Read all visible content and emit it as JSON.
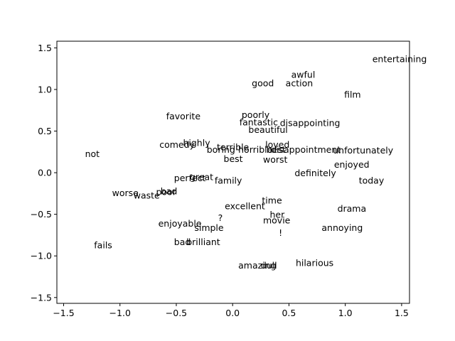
{
  "chart_data": {
    "type": "scatter",
    "title": "",
    "xlabel": "",
    "ylabel": "",
    "xlim": [
      -1.56,
      1.57
    ],
    "ylim": [
      -1.57,
      1.58
    ],
    "xticks": [
      -1.5,
      -1.0,
      -0.5,
      0.0,
      0.5,
      1.0,
      1.5
    ],
    "yticks": [
      -1.5,
      -1.0,
      -0.5,
      0.0,
      0.5,
      1.0,
      1.5
    ],
    "xtick_labels": [
      "−1.5",
      "−1.0",
      "−0.5",
      "0.0",
      "0.5",
      "1.0",
      "1.5"
    ],
    "ytick_labels": [
      "−1.5",
      "−1.0",
      "−0.5",
      "0.0",
      "0.5",
      "1.0",
      "1.5"
    ],
    "grid": false,
    "points": [
      {
        "label": "entertaining",
        "x": 1.24,
        "y": 1.33
      },
      {
        "label": "awful",
        "x": 0.52,
        "y": 1.14
      },
      {
        "label": "good",
        "x": 0.17,
        "y": 1.04
      },
      {
        "label": "action",
        "x": 0.47,
        "y": 1.04
      },
      {
        "label": "film",
        "x": 0.99,
        "y": 0.9
      },
      {
        "label": "favorite",
        "x": -0.59,
        "y": 0.64
      },
      {
        "label": "poorly",
        "x": 0.08,
        "y": 0.66
      },
      {
        "label": "fantastic",
        "x": 0.06,
        "y": 0.57
      },
      {
        "label": "disappointing",
        "x": 0.42,
        "y": 0.56
      },
      {
        "label": "beautiful",
        "x": 0.14,
        "y": 0.48
      },
      {
        "label": "comedy",
        "x": -0.65,
        "y": 0.3
      },
      {
        "label": "highly",
        "x": -0.44,
        "y": 0.32
      },
      {
        "label": "terrible",
        "x": -0.14,
        "y": 0.27
      },
      {
        "label": "boring",
        "x": -0.23,
        "y": 0.24
      },
      {
        "label": "horrible",
        "x": 0.05,
        "y": 0.24
      },
      {
        "label": "loved",
        "x": 0.29,
        "y": 0.3
      },
      {
        "label": "best",
        "x": 0.3,
        "y": 0.24
      },
      {
        "label": "disappointment",
        "x": 0.34,
        "y": 0.24
      },
      {
        "label": "unfortunately",
        "x": 0.89,
        "y": 0.23
      },
      {
        "label": "not",
        "x": -1.31,
        "y": 0.19
      },
      {
        "label": "best",
        "x": -0.08,
        "y": 0.13
      },
      {
        "label": "worst",
        "x": 0.27,
        "y": 0.12
      },
      {
        "label": "enjoyed",
        "x": 0.9,
        "y": 0.06
      },
      {
        "label": "definitely",
        "x": 0.55,
        "y": -0.04
      },
      {
        "label": "great",
        "x": -0.38,
        "y": -0.09
      },
      {
        "label": "perfect",
        "x": -0.52,
        "y": -0.1
      },
      {
        "label": "family",
        "x": -0.16,
        "y": -0.13
      },
      {
        "label": "today",
        "x": 1.12,
        "y": -0.13
      },
      {
        "label": "worse",
        "x": -1.07,
        "y": -0.28
      },
      {
        "label": "waste",
        "x": -0.88,
        "y": -0.31
      },
      {
        "label": "poor",
        "x": -0.68,
        "y": -0.27
      },
      {
        "label": "bad",
        "x": -0.64,
        "y": -0.26
      },
      {
        "label": "time",
        "x": 0.26,
        "y": -0.37
      },
      {
        "label": "excellent",
        "x": -0.07,
        "y": -0.44
      },
      {
        "label": "drama",
        "x": 0.93,
        "y": -0.47
      },
      {
        "label": "her",
        "x": 0.33,
        "y": -0.54
      },
      {
        "label": "?",
        "x": -0.13,
        "y": -0.58
      },
      {
        "label": "movie",
        "x": 0.27,
        "y": -0.61
      },
      {
        "label": "enjoyable",
        "x": -0.66,
        "y": -0.65
      },
      {
        "label": "simple",
        "x": -0.34,
        "y": -0.7
      },
      {
        "label": "annoying",
        "x": 0.79,
        "y": -0.7
      },
      {
        "label": "!",
        "x": 0.41,
        "y": -0.76
      },
      {
        "label": "bad",
        "x": -0.52,
        "y": -0.87
      },
      {
        "label": "brilliant",
        "x": -0.41,
        "y": -0.87
      },
      {
        "label": "fails",
        "x": -1.23,
        "y": -0.91
      },
      {
        "label": "hilarious",
        "x": 0.56,
        "y": -1.12
      },
      {
        "label": "amazing",
        "x": 0.05,
        "y": -1.15
      },
      {
        "label": "dull",
        "x": 0.25,
        "y": -1.15
      }
    ]
  }
}
